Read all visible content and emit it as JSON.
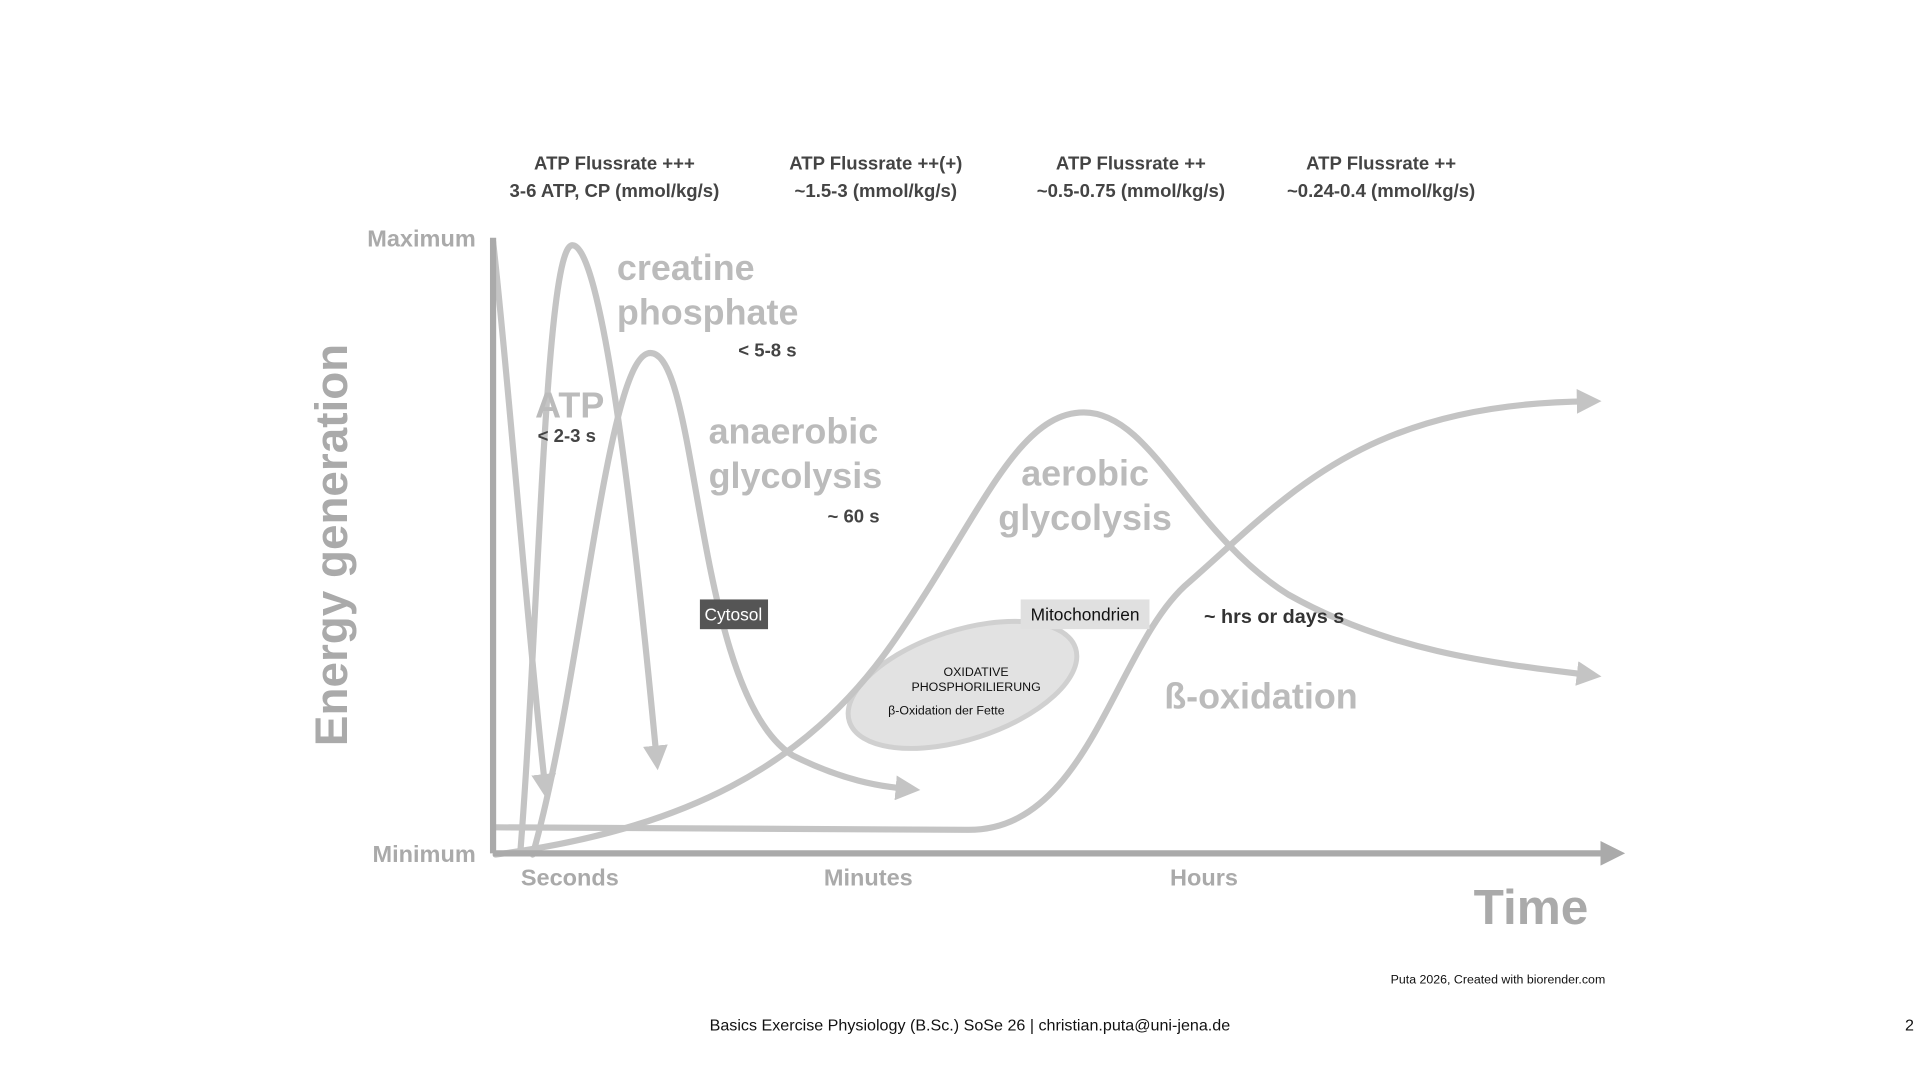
{
  "header": {
    "columns": [
      {
        "line1": "ATP Flussrate +++",
        "line2": "3-6 ATP, CP (mmol/kg/s)"
      },
      {
        "line1": "ATP Flussrate ++(+)",
        "line2": "~1.5-3 (mmol/kg/s)"
      },
      {
        "line1": "ATP Flussrate ++",
        "line2": "~0.5-0.75 (mmol/kg/s)"
      },
      {
        "line1": "ATP Flussrate ++",
        "line2": "~0.24-0.4 (mmol/kg/s)"
      }
    ]
  },
  "axes": {
    "y_title": "Energy generation",
    "y_max": "Maximum",
    "y_min": "Minimum",
    "x_title": "Time",
    "x_labels": [
      "Seconds",
      "Minutes",
      "Hours"
    ]
  },
  "curves": {
    "atp": {
      "name": "ATP",
      "duration": "< 2-3 s"
    },
    "creatine_phosphate": {
      "name_line1": "creatine",
      "name_line2": "phosphate",
      "duration": "< 5-8 s"
    },
    "anaerobic": {
      "name_line1": "anaerobic",
      "name_line2": "glycolysis",
      "duration": "~ 60 s"
    },
    "aerobic": {
      "name_line1": "aerobic",
      "name_line2": "glycolysis"
    },
    "beta_oxidation": {
      "name": "ß-oxidation",
      "duration": "~ hrs or days s"
    }
  },
  "locations": {
    "cytosol": "Cytosol",
    "mitochondria": "Mitochondrien"
  },
  "mitochondrion": {
    "line1": "OXIDATIVE",
    "line2": "PHOSPHORILIERUNG",
    "line3": "β-Oxidation der Fette"
  },
  "credit": "Puta 2026, Created with biorender.com",
  "footer": {
    "text": "Basics Exercise Physiology (B.Sc.) SoSe 26 | christian.puta@uni-jena.de",
    "page": "2"
  }
}
